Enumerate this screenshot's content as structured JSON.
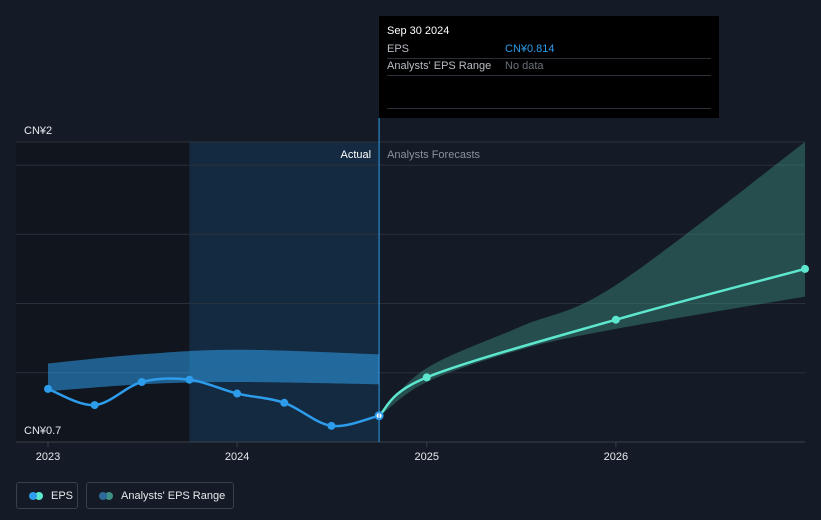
{
  "chart_data": {
    "type": "line",
    "y_axis": {
      "min_label": "CN¥0.7",
      "max_label": "CN¥2",
      "ylim": [
        0.7,
        2
      ]
    },
    "x_ticks": [
      "2023",
      "2024",
      "2025",
      "2026"
    ],
    "region_labels": {
      "actual": "Actual",
      "forecast": "Analysts Forecasts"
    },
    "series": [
      {
        "name": "EPS",
        "color": "#2d9cea",
        "points": [
          {
            "x": "2022-12-31",
            "y": 0.93
          },
          {
            "x": "2023-03-31",
            "y": 0.86
          },
          {
            "x": "2023-06-30",
            "y": 0.96
          },
          {
            "x": "2023-09-30",
            "y": 0.97
          },
          {
            "x": "2023-12-31",
            "y": 0.91
          },
          {
            "x": "2024-03-31",
            "y": 0.87
          },
          {
            "x": "2024-06-30",
            "y": 0.77
          },
          {
            "x": "2024-09-30",
            "y": 0.814
          }
        ]
      },
      {
        "name": "EPS forecast",
        "color": "#5ee7cf",
        "points": [
          {
            "x": "2024-09-30",
            "y": 0.814
          },
          {
            "x": "2024-12-31",
            "y": 0.98
          },
          {
            "x": "2025-12-31",
            "y": 1.23
          },
          {
            "x": "2026-12-31",
            "y": 1.45
          }
        ]
      }
    ],
    "ranges": [
      {
        "name": "Analysts' EPS Range",
        "color": "#2d9cea",
        "upper": [
          {
            "x": "2022-12-31",
            "y": 1.04
          },
          {
            "x": "2023-06-30",
            "y": 1.08
          },
          {
            "x": "2023-12-31",
            "y": 1.1
          },
          {
            "x": "2024-09-30",
            "y": 1.08
          }
        ],
        "lower": [
          {
            "x": "2022-12-31",
            "y": 0.92
          },
          {
            "x": "2023-06-30",
            "y": 0.95
          },
          {
            "x": "2023-12-31",
            "y": 0.96
          },
          {
            "x": "2024-09-30",
            "y": 0.95
          }
        ]
      },
      {
        "name": "Analysts' EPS Range forecast",
        "color": "#3c8f82",
        "upper": [
          {
            "x": "2024-09-30",
            "y": 0.82
          },
          {
            "x": "2024-12-31",
            "y": 1.02
          },
          {
            "x": "2025-06-30",
            "y": 1.2
          },
          {
            "x": "2025-12-31",
            "y": 1.38
          },
          {
            "x": "2026-12-31",
            "y": 2.0
          }
        ],
        "lower": [
          {
            "x": "2024-09-30",
            "y": 0.81
          },
          {
            "x": "2024-12-31",
            "y": 0.96
          },
          {
            "x": "2025-06-30",
            "y": 1.1
          },
          {
            "x": "2025-12-31",
            "y": 1.19
          },
          {
            "x": "2026-12-31",
            "y": 1.33
          }
        ]
      }
    ],
    "grid": true
  },
  "tooltip": {
    "date": "Sep 30 2024",
    "eps_label": "EPS",
    "eps_value": "CN¥0.814",
    "eps_color": "#2d9cea",
    "range_label": "Analysts' EPS Range",
    "range_value": "No data"
  },
  "legend": {
    "eps_label": "EPS",
    "range_label": "Analysts' EPS Range",
    "eps_colors": [
      "#2d9cea",
      "#5ee7cf"
    ],
    "range_colors": [
      "#2d6a9a",
      "#3c8f82"
    ]
  }
}
